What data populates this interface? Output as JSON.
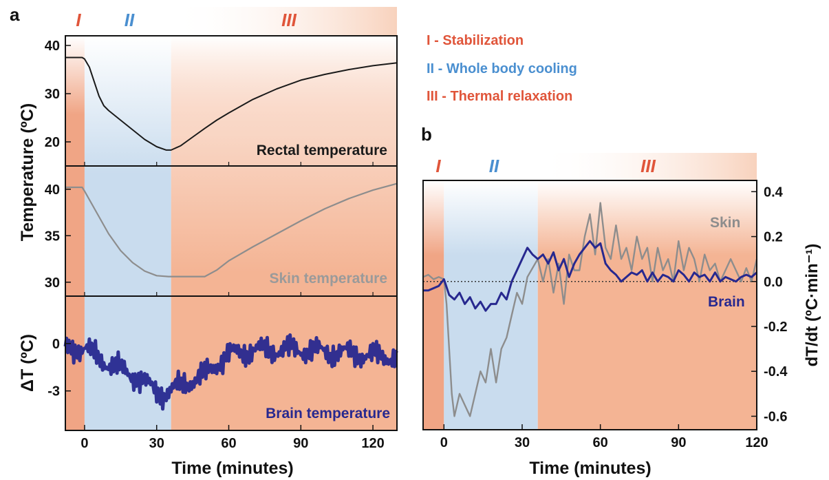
{
  "colors": {
    "phase_I": "#f0a585",
    "phase_II": "#c9dcee",
    "phase_III": "#f4b494",
    "phase_I_text": "#e0553a",
    "phase_II_text": "#4a8fd0",
    "rectal": "#1a1a1a",
    "skin": "#8d8d8d",
    "brain": "#27288f"
  },
  "legend": {
    "items": [
      {
        "label": "I - Stabilization"
      },
      {
        "label": "II - Whole body cooling"
      },
      {
        "label": "III - Thermal relaxation"
      }
    ]
  },
  "chart_data": [
    {
      "panel_label": "a",
      "type": "line",
      "phase_labels": [
        "I",
        "II",
        "III"
      ],
      "phases": [
        {
          "name": "I",
          "x_range": [
            -8,
            0
          ]
        },
        {
          "name": "II",
          "x_range": [
            0,
            36
          ]
        },
        {
          "name": "III",
          "x_range": [
            36,
            130
          ]
        }
      ],
      "xlabel": "Time (minutes)",
      "xticks": [
        0,
        30,
        60,
        90,
        120
      ],
      "xlim": [
        -8,
        130
      ],
      "shared_ylabel": "Temperature (ºC)",
      "subplots": [
        {
          "annotation": "Rectal temperature",
          "ylim": [
            15,
            42
          ],
          "yticks": [
            20,
            30,
            40
          ],
          "series": [
            {
              "x": [
                -8,
                -1,
                0,
                2,
                4,
                6,
                8,
                10,
                15,
                20,
                25,
                30,
                34,
                36,
                40,
                45,
                50,
                55,
                60,
                70,
                80,
                90,
                100,
                110,
                120,
                130
              ],
              "y": [
                37.5,
                37.5,
                37.2,
                35.5,
                32.5,
                29.5,
                27.5,
                26.5,
                24.5,
                22.5,
                20.5,
                19.0,
                18.3,
                18.3,
                19.2,
                21.0,
                22.8,
                24.5,
                26.0,
                28.8,
                31.0,
                32.8,
                34.0,
                35.0,
                35.8,
                36.4
              ]
            }
          ]
        },
        {
          "annotation": "Skin temperature",
          "ylim": [
            28.5,
            42.5
          ],
          "yticks": [
            30,
            35,
            40
          ],
          "series": [
            {
              "x": [
                -8,
                -1,
                0,
                5,
                10,
                15,
                20,
                25,
                30,
                35,
                40,
                45,
                50,
                55,
                60,
                70,
                80,
                90,
                100,
                110,
                120,
                130
              ],
              "y": [
                40.2,
                40.2,
                39.8,
                37.5,
                35.2,
                33.4,
                32.1,
                31.2,
                30.7,
                30.6,
                30.6,
                30.6,
                30.6,
                31.3,
                32.3,
                33.8,
                35.2,
                36.6,
                37.9,
                39.0,
                39.9,
                40.6
              ]
            }
          ]
        },
        {
          "annotation": "Brain temperature",
          "ylabel": "ΔT (ºC)",
          "ylim": [
            -5.5,
            3.0
          ],
          "yticks": [
            0,
            -3
          ],
          "ytick_labels": [
            "0",
            "-3"
          ],
          "series": [
            {
              "x": [
                -8,
                0,
                5,
                10,
                15,
                20,
                25,
                30,
                33,
                36,
                40,
                45,
                50,
                55,
                60,
                70,
                80,
                90,
                100,
                110,
                120,
                130
              ],
              "y": [
                -0.3,
                -0.3,
                -0.8,
                -1.3,
                -1.6,
                -2.0,
                -2.5,
                -3.0,
                -3.2,
                -3.0,
                -2.6,
                -2.3,
                -2.0,
                -1.3,
                -0.7,
                -0.4,
                -0.4,
                -0.4,
                -0.5,
                -0.6,
                -0.8,
                -0.8
              ]
            }
          ]
        }
      ]
    },
    {
      "panel_label": "b",
      "type": "line",
      "phase_labels": [
        "I",
        "II",
        "III"
      ],
      "phases": [
        {
          "name": "I",
          "x_range": [
            -8,
            0
          ]
        },
        {
          "name": "II",
          "x_range": [
            0,
            36
          ]
        },
        {
          "name": "III",
          "x_range": [
            36,
            120
          ]
        }
      ],
      "xlabel": "Time (minutes)",
      "ylabel": "dT/dt (ºC·min⁻¹)",
      "xticks": [
        0,
        30,
        60,
        90,
        120
      ],
      "yticks": [
        0.4,
        0.2,
        0.0,
        -0.2,
        -0.4,
        -0.6
      ],
      "ytick_labels": [
        "0.4",
        "0.2",
        "0.0",
        "-0.2",
        "-0.4",
        "-0.6"
      ],
      "xlim": [
        -8,
        120
      ],
      "ylim": [
        -0.66,
        0.45
      ],
      "zero_line": true,
      "series": [
        {
          "name": "Skin",
          "x": [
            -8,
            -6,
            -4,
            -2,
            0,
            1,
            2,
            3,
            4,
            6,
            8,
            10,
            12,
            14,
            16,
            18,
            20,
            22,
            24,
            26,
            28,
            30,
            32,
            34,
            36,
            38,
            40,
            42,
            44,
            46,
            48,
            50,
            52,
            54,
            56,
            58,
            60,
            62,
            64,
            66,
            68,
            70,
            72,
            74,
            76,
            78,
            80,
            82,
            84,
            86,
            88,
            90,
            92,
            94,
            96,
            98,
            100,
            102,
            104,
            106,
            108,
            110,
            112,
            114,
            116,
            118,
            120
          ],
          "y": [
            0.02,
            0.03,
            0.01,
            0.02,
            0.01,
            -0.1,
            -0.3,
            -0.5,
            -0.6,
            -0.5,
            -0.55,
            -0.6,
            -0.5,
            -0.4,
            -0.45,
            -0.3,
            -0.45,
            -0.3,
            -0.25,
            -0.15,
            -0.05,
            -0.1,
            0.02,
            0.06,
            0.1,
            0.0,
            0.1,
            -0.05,
            0.08,
            -0.1,
            0.12,
            0.05,
            0.05,
            0.2,
            0.3,
            0.12,
            0.35,
            0.15,
            0.1,
            0.25,
            0.1,
            0.15,
            0.05,
            0.2,
            0.1,
            0.15,
            0.0,
            0.15,
            0.05,
            0.1,
            0.0,
            0.18,
            0.05,
            0.15,
            0.1,
            0.0,
            0.12,
            0.05,
            0.08,
            0.0,
            0.05,
            0.1,
            0.05,
            0.0,
            0.06,
            0.0,
            0.1
          ]
        },
        {
          "name": "Brain",
          "x": [
            -8,
            -6,
            -4,
            -2,
            0,
            2,
            4,
            6,
            8,
            10,
            12,
            14,
            16,
            18,
            20,
            22,
            24,
            26,
            28,
            30,
            32,
            34,
            36,
            38,
            40,
            42,
            44,
            46,
            48,
            50,
            52,
            54,
            56,
            58,
            60,
            62,
            64,
            66,
            68,
            70,
            72,
            74,
            76,
            78,
            80,
            82,
            84,
            86,
            88,
            90,
            92,
            94,
            96,
            98,
            100,
            102,
            104,
            106,
            108,
            110,
            112,
            114,
            116,
            118,
            120
          ],
          "y": [
            -0.04,
            -0.04,
            -0.03,
            -0.02,
            0.01,
            -0.06,
            -0.08,
            -0.05,
            -0.1,
            -0.07,
            -0.12,
            -0.09,
            -0.13,
            -0.1,
            -0.1,
            -0.05,
            -0.08,
            0.0,
            0.05,
            0.1,
            0.15,
            0.12,
            0.1,
            0.12,
            0.08,
            0.13,
            0.05,
            0.1,
            0.02,
            0.08,
            0.12,
            0.15,
            0.18,
            0.15,
            0.17,
            0.08,
            0.05,
            0.03,
            0.0,
            0.02,
            0.04,
            0.03,
            0.05,
            0.0,
            0.04,
            0.0,
            0.03,
            0.02,
            0.0,
            0.05,
            0.03,
            0.0,
            0.04,
            0.02,
            0.03,
            0.0,
            0.04,
            0.0,
            0.02,
            0.01,
            0.0,
            0.02,
            0.03,
            0.02,
            0.04
          ]
        }
      ]
    }
  ]
}
